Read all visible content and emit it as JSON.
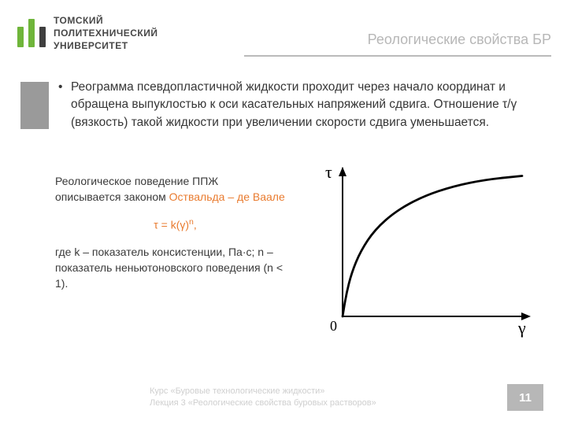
{
  "logo": {
    "bars": [
      {
        "color": "#6fb53a",
        "height": 26
      },
      {
        "color": "#6fb53a",
        "height": 36
      },
      {
        "color": "#3f3f3f",
        "height": 26
      }
    ],
    "line1": "ТОМСКИЙ",
    "line2": "ПОЛИТЕХНИЧЕСКИЙ",
    "line3": "УНИВЕРСИТЕТ"
  },
  "title": "Реологические свойства БР",
  "bullet": "Реограмма псевдопластичной жидкости проходит через начало координат и обращена выпуклостью к оси касательных напряжений сдвига. Отношение τ/γ (вязкость) такой жидкости при увеличении скорости сдвига уменьшается.",
  "left": {
    "intro1": "Реологическое поведение ППЖ",
    "intro2": "описывается законом ",
    "lawName": "Оствальда – де Ваале",
    "formula_prefix": "τ = k(γ)",
    "formula_exp": "n",
    "formula_suffix": ",",
    "where": "где k – показатель консистенции, Па·с; n – показатель неньютоновского поведения (n < 1)."
  },
  "chart": {
    "type": "line",
    "x_label": "γ",
    "y_label": "τ",
    "origin_label": "0",
    "axis_color": "#000000",
    "line_color": "#000000",
    "line_width": 2.8,
    "background_color": "#ffffff",
    "x_range": [
      0,
      1
    ],
    "y_range": [
      0,
      1
    ],
    "points": [
      [
        0.0,
        0.0
      ],
      [
        0.02,
        0.15
      ],
      [
        0.05,
        0.3
      ],
      [
        0.1,
        0.45
      ],
      [
        0.18,
        0.6
      ],
      [
        0.3,
        0.73
      ],
      [
        0.45,
        0.83
      ],
      [
        0.62,
        0.9
      ],
      [
        0.8,
        0.945
      ],
      [
        1.0,
        0.97
      ]
    ],
    "tau_label_fontsize": 22,
    "gamma_label_fontsize": 22,
    "origin_label_fontsize": 18
  },
  "footer": {
    "line1": "Курс «Буровые технологические жидкости»",
    "line2": "Лекция 3 «Реологические свойства буровых растворов»",
    "page": "11"
  },
  "colors": {
    "title": "#b7b7b7",
    "accent": "#e97b2f",
    "body": "#3f3f3f",
    "footer": "#cfcfcf",
    "underline": "#bababa",
    "grayBlock": "#9a9a9a",
    "pageBg": "#b7b7b7"
  }
}
